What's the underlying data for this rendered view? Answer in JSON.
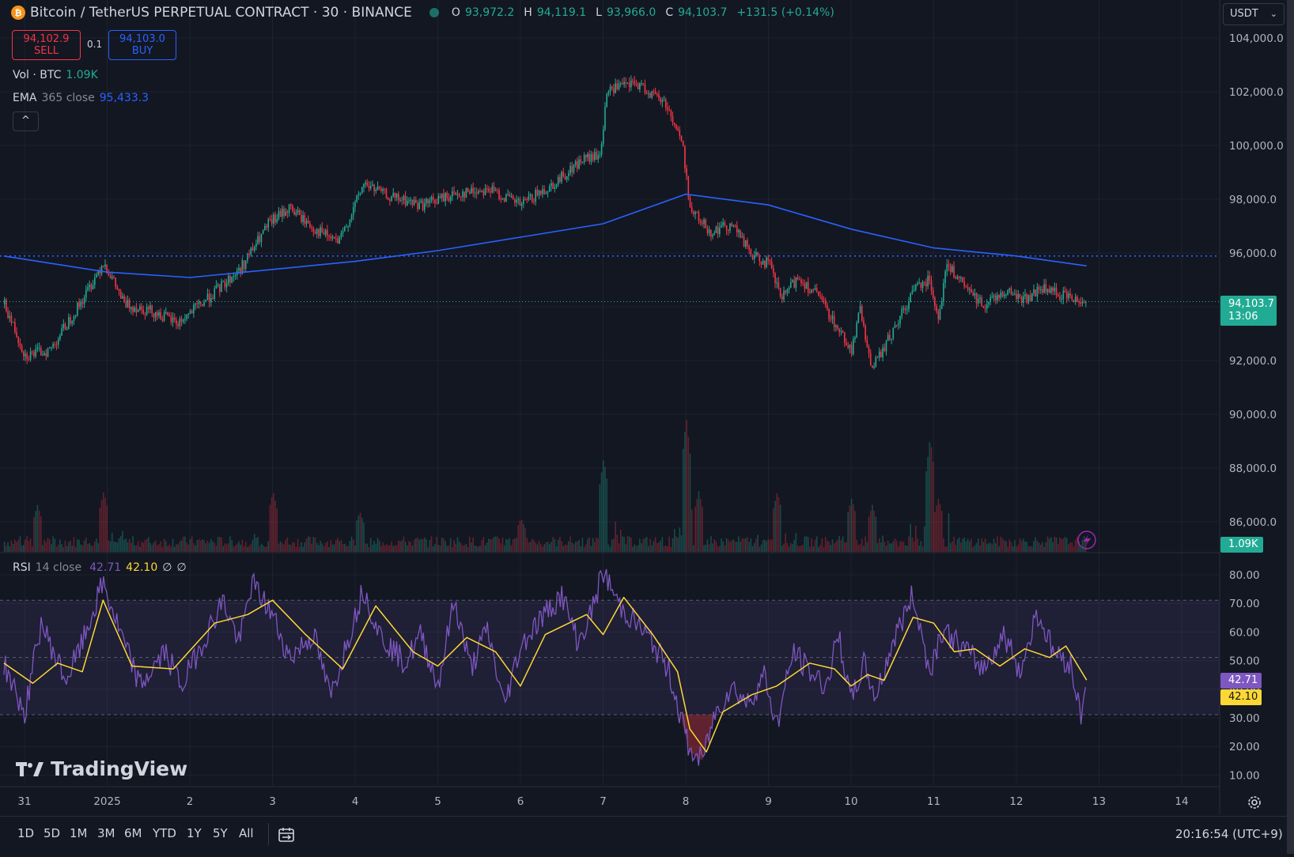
{
  "header": {
    "logo_letter": "₿",
    "symbol_title": "Bitcoin / TetherUS PERPETUAL CONTRACT · 30 · BINANCE",
    "ohlc": [
      {
        "key": "O",
        "value": "93,972.2"
      },
      {
        "key": "H",
        "value": "94,119.1"
      },
      {
        "key": "L",
        "value": "93,966.0"
      },
      {
        "key": "C",
        "value": "94,103.7"
      }
    ],
    "change": "+131.5 (+0.14%)",
    "currency": "USDT"
  },
  "trade": {
    "sell_price": "94,102.9",
    "sell_label": "SELL",
    "spread": "0.1",
    "buy_price": "94,103.0",
    "buy_label": "BUY"
  },
  "indicators": {
    "vol_label": "Vol · BTC",
    "vol_value": "1.09K",
    "ema_label": "EMA",
    "ema_params": "365 close",
    "ema_value": "95,433.3",
    "collapse_icon": "^",
    "rsi_label": "RSI",
    "rsi_params": "14 close",
    "rsi_value": "42.71",
    "rsi_ma_value": "42.10",
    "rsi_extra1": "∅",
    "rsi_extra2": "∅"
  },
  "price_tags": {
    "last_price": "94,103.7",
    "countdown": "13:06",
    "volume": "1.09K",
    "rsi": "42.71",
    "rsi_ma": "42.10"
  },
  "watermark": "TradingView",
  "timeframes": [
    "1D",
    "5D",
    "1M",
    "3M",
    "6M",
    "YTD",
    "1Y",
    "5Y",
    "All"
  ],
  "clock": "20:16:54 (UTC+9)",
  "colors": {
    "background": "#131722",
    "up": "#22ab94",
    "down": "#f23645",
    "ema": "#2962ff",
    "rsi": "#7e57c2",
    "rsi_ma": "#fdd835",
    "grid": "#1e222d"
  },
  "chart_data": [
    {
      "type": "candlestick",
      "title": "Bitcoin / TetherUS PERPETUAL CONTRACT · 30 · BINANCE",
      "x_ticks": [
        "31",
        "2025",
        "2",
        "3",
        "4",
        "5",
        "6",
        "7",
        "8",
        "9",
        "10",
        "11",
        "12",
        "13",
        "14"
      ],
      "y_ticks": [
        "104,000.0",
        "102,000.0",
        "100,000.0",
        "98,000.0",
        "96,000.0",
        "94,000.0",
        "92,000.0",
        "90,000.0",
        "88,000.0",
        "86,000.0"
      ],
      "ylim": [
        85000,
        104500
      ],
      "price_path": [
        {
          "t": -0.25,
          "p": 94000
        },
        {
          "t": 0.0,
          "p": 92100
        },
        {
          "t": 0.3,
          "p": 92300
        },
        {
          "t": 0.7,
          "p": 94200
        },
        {
          "t": 0.95,
          "p": 95600
        },
        {
          "t": 1.2,
          "p": 94000
        },
        {
          "t": 1.5,
          "p": 93800
        },
        {
          "t": 1.85,
          "p": 93300
        },
        {
          "t": 2.2,
          "p": 94200
        },
        {
          "t": 2.6,
          "p": 95300
        },
        {
          "t": 2.95,
          "p": 97000
        },
        {
          "t": 3.2,
          "p": 97600
        },
        {
          "t": 3.5,
          "p": 96800
        },
        {
          "t": 3.8,
          "p": 96300
        },
        {
          "t": 4.1,
          "p": 98500
        },
        {
          "t": 4.4,
          "p": 98000
        },
        {
          "t": 4.8,
          "p": 97700
        },
        {
          "t": 5.2,
          "p": 98100
        },
        {
          "t": 5.6,
          "p": 98300
        },
        {
          "t": 6.0,
          "p": 97700
        },
        {
          "t": 6.4,
          "p": 98500
        },
        {
          "t": 6.75,
          "p": 99400
        },
        {
          "t": 6.95,
          "p": 99500
        },
        {
          "t": 7.05,
          "p": 102000
        },
        {
          "t": 7.4,
          "p": 102200
        },
        {
          "t": 7.75,
          "p": 101500
        },
        {
          "t": 7.95,
          "p": 100000
        },
        {
          "t": 8.05,
          "p": 97500
        },
        {
          "t": 8.3,
          "p": 96700
        },
        {
          "t": 8.55,
          "p": 97000
        },
        {
          "t": 8.8,
          "p": 95800
        },
        {
          "t": 9.0,
          "p": 95500
        },
        {
          "t": 9.15,
          "p": 94200
        },
        {
          "t": 9.35,
          "p": 95000
        },
        {
          "t": 9.6,
          "p": 94300
        },
        {
          "t": 9.85,
          "p": 93000
        },
        {
          "t": 10.0,
          "p": 92300
        },
        {
          "t": 10.1,
          "p": 93800
        },
        {
          "t": 10.25,
          "p": 91600
        },
        {
          "t": 10.5,
          "p": 93000
        },
        {
          "t": 10.8,
          "p": 94800
        },
        {
          "t": 10.95,
          "p": 94900
        },
        {
          "t": 11.05,
          "p": 93500
        },
        {
          "t": 11.15,
          "p": 95500
        },
        {
          "t": 11.4,
          "p": 94500
        },
        {
          "t": 11.6,
          "p": 94000
        },
        {
          "t": 11.85,
          "p": 94500
        },
        {
          "t": 12.1,
          "p": 94200
        },
        {
          "t": 12.3,
          "p": 94600
        },
        {
          "t": 12.6,
          "p": 94300
        },
        {
          "t": 12.85,
          "p": 94103.7
        }
      ],
      "ema365": [
        {
          "t": -0.25,
          "p": 95800
        },
        {
          "t": 1.0,
          "p": 95200
        },
        {
          "t": 2.0,
          "p": 95000
        },
        {
          "t": 3.0,
          "p": 95300
        },
        {
          "t": 4.0,
          "p": 95600
        },
        {
          "t": 5.0,
          "p": 96000
        },
        {
          "t": 6.0,
          "p": 96500
        },
        {
          "t": 7.0,
          "p": 97000
        },
        {
          "t": 8.0,
          "p": 98100
        },
        {
          "t": 9.0,
          "p": 97700
        },
        {
          "t": 10.0,
          "p": 96800
        },
        {
          "t": 11.0,
          "p": 96100
        },
        {
          "t": 12.0,
          "p": 95800
        },
        {
          "t": 12.85,
          "p": 95433.3
        }
      ],
      "dotted_level": 95800,
      "last_price": 94103.7
    },
    {
      "type": "bar",
      "title": "Vol · BTC",
      "spikes": [
        {
          "t": 0.15,
          "v": 0.35
        },
        {
          "t": 0.95,
          "v": 0.45
        },
        {
          "t": 3.0,
          "v": 0.45
        },
        {
          "t": 4.05,
          "v": 0.3
        },
        {
          "t": 6.0,
          "v": 0.25
        },
        {
          "t": 7.0,
          "v": 0.7
        },
        {
          "t": 8.0,
          "v": 1.0
        },
        {
          "t": 8.15,
          "v": 0.45
        },
        {
          "t": 9.1,
          "v": 0.45
        },
        {
          "t": 10.0,
          "v": 0.4
        },
        {
          "t": 10.25,
          "v": 0.35
        },
        {
          "t": 10.95,
          "v": 0.85
        },
        {
          "t": 11.05,
          "v": 0.4
        }
      ],
      "last_value": "1.09K"
    },
    {
      "type": "line",
      "title": "RSI",
      "y_ticks": [
        "80.00",
        "70.00",
        "60.00",
        "50.00",
        "40.00",
        "30.00",
        "20.00",
        "10.00"
      ],
      "ylim": [
        5,
        85
      ],
      "band": [
        30,
        70
      ],
      "rsi": [
        {
          "t": -0.25,
          "v": 48
        },
        {
          "t": 0.0,
          "v": 30
        },
        {
          "t": 0.2,
          "v": 62
        },
        {
          "t": 0.5,
          "v": 42
        },
        {
          "t": 0.7,
          "v": 55
        },
        {
          "t": 0.95,
          "v": 76
        },
        {
          "t": 1.2,
          "v": 55
        },
        {
          "t": 1.4,
          "v": 40
        },
        {
          "t": 1.7,
          "v": 52
        },
        {
          "t": 1.9,
          "v": 40
        },
        {
          "t": 2.2,
          "v": 58
        },
        {
          "t": 2.4,
          "v": 70
        },
        {
          "t": 2.6,
          "v": 55
        },
        {
          "t": 2.75,
          "v": 76
        },
        {
          "t": 3.0,
          "v": 65
        },
        {
          "t": 3.2,
          "v": 50
        },
        {
          "t": 3.5,
          "v": 58
        },
        {
          "t": 3.7,
          "v": 36
        },
        {
          "t": 3.95,
          "v": 60
        },
        {
          "t": 4.1,
          "v": 74
        },
        {
          "t": 4.3,
          "v": 58
        },
        {
          "t": 4.6,
          "v": 48
        },
        {
          "t": 4.8,
          "v": 58
        },
        {
          "t": 5.0,
          "v": 40
        },
        {
          "t": 5.2,
          "v": 70
        },
        {
          "t": 5.4,
          "v": 46
        },
        {
          "t": 5.6,
          "v": 60
        },
        {
          "t": 5.8,
          "v": 33
        },
        {
          "t": 6.0,
          "v": 54
        },
        {
          "t": 6.2,
          "v": 62
        },
        {
          "t": 6.5,
          "v": 72
        },
        {
          "t": 6.7,
          "v": 55
        },
        {
          "t": 6.85,
          "v": 65
        },
        {
          "t": 7.0,
          "v": 80
        },
        {
          "t": 7.2,
          "v": 68
        },
        {
          "t": 7.4,
          "v": 62
        },
        {
          "t": 7.6,
          "v": 55
        },
        {
          "t": 7.8,
          "v": 45
        },
        {
          "t": 7.95,
          "v": 28
        },
        {
          "t": 8.05,
          "v": 17
        },
        {
          "t": 8.2,
          "v": 14
        },
        {
          "t": 8.35,
          "v": 30
        },
        {
          "t": 8.55,
          "v": 40
        },
        {
          "t": 8.75,
          "v": 34
        },
        {
          "t": 8.95,
          "v": 44
        },
        {
          "t": 9.1,
          "v": 26
        },
        {
          "t": 9.3,
          "v": 52
        },
        {
          "t": 9.5,
          "v": 45
        },
        {
          "t": 9.7,
          "v": 40
        },
        {
          "t": 9.85,
          "v": 58
        },
        {
          "t": 10.0,
          "v": 34
        },
        {
          "t": 10.15,
          "v": 48
        },
        {
          "t": 10.3,
          "v": 36
        },
        {
          "t": 10.5,
          "v": 55
        },
        {
          "t": 10.75,
          "v": 72
        },
        {
          "t": 10.95,
          "v": 45
        },
        {
          "t": 11.1,
          "v": 60
        },
        {
          "t": 11.4,
          "v": 52
        },
        {
          "t": 11.6,
          "v": 46
        },
        {
          "t": 11.85,
          "v": 58
        },
        {
          "t": 12.05,
          "v": 45
        },
        {
          "t": 12.25,
          "v": 66
        },
        {
          "t": 12.45,
          "v": 52
        },
        {
          "t": 12.65,
          "v": 48
        },
        {
          "t": 12.78,
          "v": 30
        },
        {
          "t": 12.85,
          "v": 42.71
        }
      ],
      "rsi_ma": [
        {
          "t": -0.25,
          "v": 48
        },
        {
          "t": 0.1,
          "v": 41
        },
        {
          "t": 0.4,
          "v": 48
        },
        {
          "t": 0.7,
          "v": 45
        },
        {
          "t": 0.95,
          "v": 70
        },
        {
          "t": 1.3,
          "v": 47
        },
        {
          "t": 1.8,
          "v": 46
        },
        {
          "t": 2.3,
          "v": 62
        },
        {
          "t": 2.7,
          "v": 65
        },
        {
          "t": 3.0,
          "v": 70
        },
        {
          "t": 3.4,
          "v": 58
        },
        {
          "t": 3.85,
          "v": 46
        },
        {
          "t": 4.25,
          "v": 68
        },
        {
          "t": 4.7,
          "v": 52
        },
        {
          "t": 5.0,
          "v": 47
        },
        {
          "t": 5.35,
          "v": 57
        },
        {
          "t": 5.7,
          "v": 52
        },
        {
          "t": 6.0,
          "v": 40
        },
        {
          "t": 6.3,
          "v": 58
        },
        {
          "t": 6.8,
          "v": 65
        },
        {
          "t": 7.0,
          "v": 58
        },
        {
          "t": 7.25,
          "v": 71
        },
        {
          "t": 7.6,
          "v": 58
        },
        {
          "t": 7.9,
          "v": 45
        },
        {
          "t": 8.05,
          "v": 25
        },
        {
          "t": 8.25,
          "v": 17
        },
        {
          "t": 8.45,
          "v": 31
        },
        {
          "t": 8.8,
          "v": 37
        },
        {
          "t": 9.1,
          "v": 40
        },
        {
          "t": 9.5,
          "v": 48
        },
        {
          "t": 9.8,
          "v": 46
        },
        {
          "t": 10.0,
          "v": 40
        },
        {
          "t": 10.2,
          "v": 44
        },
        {
          "t": 10.4,
          "v": 42
        },
        {
          "t": 10.75,
          "v": 64
        },
        {
          "t": 11.0,
          "v": 62
        },
        {
          "t": 11.25,
          "v": 52
        },
        {
          "t": 11.5,
          "v": 53
        },
        {
          "t": 11.8,
          "v": 47
        },
        {
          "t": 12.1,
          "v": 53
        },
        {
          "t": 12.4,
          "v": 50
        },
        {
          "t": 12.6,
          "v": 54
        },
        {
          "t": 12.85,
          "v": 42.1
        }
      ]
    }
  ]
}
